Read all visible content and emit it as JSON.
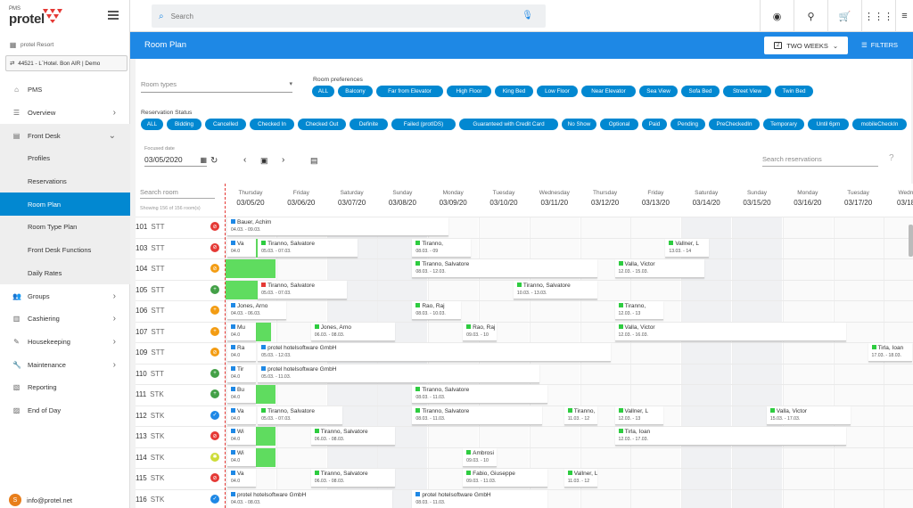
{
  "app": {
    "pms_label": "PMS",
    "brand": "protel",
    "brand_color": "#e53935"
  },
  "sidebar": {
    "property": "protel Resort",
    "hotel_selector": "44521 - L`Hotel. Bon AIR | Demo",
    "items": [
      {
        "label": "PMS",
        "icon": "home-icon"
      },
      {
        "label": "Overview",
        "icon": "overview-icon",
        "chevron": "›"
      },
      {
        "label": "Front Desk",
        "icon": "front-desk-icon",
        "chevron": "⌄"
      },
      {
        "label": "Profiles"
      },
      {
        "label": "Reservations"
      },
      {
        "label": "Room Plan",
        "active": true
      },
      {
        "label": "Room Type Plan"
      },
      {
        "label": "Front Desk Functions"
      },
      {
        "label": "Daily Rates"
      },
      {
        "label": "Groups",
        "icon": "groups-icon",
        "chevron": "›"
      },
      {
        "label": "Cashiering",
        "icon": "cashiering-icon",
        "chevron": "›"
      },
      {
        "label": "Housekeeping",
        "icon": "housekeeping-icon",
        "chevron": "›"
      },
      {
        "label": "Maintenance",
        "icon": "maintenance-icon",
        "chevron": "›"
      },
      {
        "label": "Reporting",
        "icon": "reporting-icon"
      },
      {
        "label": "End of Day",
        "icon": "end-of-day-icon"
      }
    ],
    "user": {
      "initial": "S",
      "email": "info@protel.net"
    }
  },
  "topbar": {
    "search_placeholder": "Search"
  },
  "header": {
    "title": "Room Plan",
    "range_label": "TWO WEEKS",
    "range_badge": "2",
    "filters_label": "FILTERS"
  },
  "filters": {
    "room_types_placeholder": "Room types",
    "room_prefs_label": "Room preferences",
    "room_prefs": [
      "ALL",
      "Balcony",
      "Far from Elevator",
      "High Floor",
      "King Bed",
      "Low Floor",
      "Near Elevator",
      "Sea View",
      "Sofa Bed",
      "Street View",
      "Twin Bed"
    ],
    "res_status_label": "Reservation Status",
    "res_status": [
      "ALL",
      "Bidding",
      "Cancelled",
      "Checked In",
      "Checked Out",
      "Definite",
      "Failed (protIDS)",
      "Guaranteed with Credit Card",
      "No Show",
      "Optional",
      "Paid",
      "Pending",
      "PreCheckedIn",
      "Temporary",
      "Until 6pm",
      "mobileCheckIn"
    ]
  },
  "controls": {
    "focused_label": "Focused date",
    "focused_date": "03/05/2020",
    "search_res_placeholder": "Search reservations"
  },
  "grid": {
    "search_room_placeholder": "Search room",
    "showing": "Showing 156 of 156 room(s)",
    "days": [
      {
        "dow": "Thursday",
        "date": "03/05/20"
      },
      {
        "dow": "Friday",
        "date": "03/06/20"
      },
      {
        "dow": "Saturday",
        "date": "03/07/20"
      },
      {
        "dow": "Sunday",
        "date": "03/08/20"
      },
      {
        "dow": "Monday",
        "date": "03/09/20"
      },
      {
        "dow": "Tuesday",
        "date": "03/10/20"
      },
      {
        "dow": "Wednesday",
        "date": "03/11/20"
      },
      {
        "dow": "Thursday",
        "date": "03/12/20"
      },
      {
        "dow": "Friday",
        "date": "03/13/20"
      },
      {
        "dow": "Saturday",
        "date": "03/14/20"
      },
      {
        "dow": "Sunday",
        "date": "03/15/20"
      },
      {
        "dow": "Monday",
        "date": "03/16/20"
      },
      {
        "dow": "Tuesday",
        "date": "03/17/20"
      },
      {
        "dow": "Wednes",
        "date": "03/18/2"
      }
    ],
    "rooms": [
      {
        "num": "101",
        "type": "STT",
        "status_color": "#e53935",
        "status_glyph": "⊘"
      },
      {
        "num": "103",
        "type": "STT",
        "status_color": "#e53935",
        "status_glyph": "⊘"
      },
      {
        "num": "104",
        "type": "STT",
        "status_color": "#f39c12",
        "status_glyph": "⊘"
      },
      {
        "num": "105",
        "type": "STT",
        "status_color": "#43a047",
        "status_glyph": "+"
      },
      {
        "num": "106",
        "type": "STT",
        "status_color": "#f39c12",
        "status_glyph": "+"
      },
      {
        "num": "107",
        "type": "STT",
        "status_color": "#f39c12",
        "status_glyph": "+"
      },
      {
        "num": "109",
        "type": "STT",
        "status_color": "#f39c12",
        "status_glyph": "⊘"
      },
      {
        "num": "110",
        "type": "STT",
        "status_color": "#43a047",
        "status_glyph": "+"
      },
      {
        "num": "111",
        "type": "STK",
        "status_color": "#43a047",
        "status_glyph": "+"
      },
      {
        "num": "112",
        "type": "STK",
        "status_color": "#1e88e5",
        "status_glyph": "✓"
      },
      {
        "num": "113",
        "type": "STK",
        "status_color": "#e53935",
        "status_glyph": "⊘"
      },
      {
        "num": "114",
        "type": "STK",
        "status_color": "#cddc39",
        "status_glyph": "✱"
      },
      {
        "num": "115",
        "type": "STK",
        "status_color": "#e53935",
        "status_glyph": "⊘"
      },
      {
        "num": "116",
        "type": "STK",
        "status_color": "#1e88e5",
        "status_glyph": "✓"
      }
    ],
    "reservations": [
      {
        "row": 0,
        "start": 0,
        "span": 4.4,
        "name": "Bauer, Achim",
        "dates": "04.03. - 09.03.",
        "sq": "#1e88e5"
      },
      {
        "row": 1,
        "start": 0,
        "span": 0.6,
        "name": "Va",
        "dates": "04.0",
        "sq": "#1e88e5"
      },
      {
        "row": 1,
        "start": 0.6,
        "span": 2.0,
        "name": "Tiranno, Salvatore",
        "dates": "05.03. - 07.03.",
        "sq": "#2ecc40"
      },
      {
        "row": 1,
        "start": 3.65,
        "span": 1.2,
        "name": "Tiranno,",
        "dates": "08.03. - 09",
        "sq": "#2ecc40"
      },
      {
        "row": 1,
        "start": 8.65,
        "span": 0.9,
        "name": "Vallner, L",
        "dates": "13.03. - 14",
        "sq": "#2ecc40"
      },
      {
        "row": 2,
        "start": 3.65,
        "span": 3.7,
        "name": "Tiranno, Salvatore",
        "dates": "08.03. - 12.03.",
        "sq": "#2ecc40"
      },
      {
        "row": 2,
        "start": 7.65,
        "span": 1.8,
        "name": "Valla, Victor",
        "dates": "12.03. - 15.03.",
        "sq": "#2ecc40"
      },
      {
        "row": 3,
        "start": 0.6,
        "span": 1.8,
        "name": "Tiranno, Salvatore",
        "dates": "05.03. - 07.03.",
        "sq": "#e53935"
      },
      {
        "row": 3,
        "start": 5.65,
        "span": 1.7,
        "name": "Tiranno, Salvatore",
        "dates": "10.03. - 13.03.",
        "sq": "#2ecc40"
      },
      {
        "row": 4,
        "start": 0,
        "span": 1.2,
        "name": "Jones, Arno",
        "dates": "04.03. - 06.03.",
        "sq": "#1e88e5"
      },
      {
        "row": 4,
        "start": 3.65,
        "span": 1.0,
        "name": "Rao, Raj",
        "dates": "08.03. - 10.03.",
        "sq": "#2ecc40"
      },
      {
        "row": 4,
        "start": 7.65,
        "span": 1.0,
        "name": "Tiranno,",
        "dates": "12.03. - 13",
        "sq": "#2ecc40"
      },
      {
        "row": 5,
        "start": 0,
        "span": 0.6,
        "name": "Mu",
        "dates": "04.0",
        "sq": "#1e88e5"
      },
      {
        "row": 5,
        "start": 1.65,
        "span": 1.7,
        "name": "Jones, Arno",
        "dates": "06.03. - 08.03.",
        "sq": "#2ecc40"
      },
      {
        "row": 5,
        "start": 4.65,
        "span": 0.7,
        "name": "Rao, Raj",
        "dates": "09.03. - 10",
        "sq": "#2ecc40"
      },
      {
        "row": 5,
        "start": 7.65,
        "span": 4.6,
        "name": "Valla, Victor",
        "dates": "12.03. - 16.03.",
        "sq": "#2ecc40"
      },
      {
        "row": 6,
        "start": 0,
        "span": 0.6,
        "name": "Ra",
        "dates": "04.0",
        "sq": "#1e88e5"
      },
      {
        "row": 6,
        "start": 0.6,
        "span": 7.0,
        "name": "protel hotelsoftware GmbH",
        "dates": "05.03. - 12.03.",
        "sq": "#1e88e5"
      },
      {
        "row": 6,
        "start": 12.65,
        "span": 0.9,
        "name": "Tirla, Ioan",
        "dates": "17.03. - 18.03.",
        "sq": "#2ecc40"
      },
      {
        "row": 7,
        "start": 0,
        "span": 0.6,
        "name": "Tir",
        "dates": "04.0",
        "sq": "#1e88e5"
      },
      {
        "row": 7,
        "start": 0.6,
        "span": 5.6,
        "name": "protel hotelsoftware GmbH",
        "dates": "05.03. - 11.03.",
        "sq": "#1e88e5"
      },
      {
        "row": 8,
        "start": 0,
        "span": 0.6,
        "name": "Bu",
        "dates": "04.0",
        "sq": "#1e88e5"
      },
      {
        "row": 8,
        "start": 3.65,
        "span": 2.7,
        "name": "Tiranno, Salvatore",
        "dates": "08.03. - 11.03.",
        "sq": "#2ecc40"
      },
      {
        "row": 9,
        "start": 0,
        "span": 0.6,
        "name": "Va",
        "dates": "04.0",
        "sq": "#1e88e5"
      },
      {
        "row": 9,
        "start": 0.6,
        "span": 1.7,
        "name": "Tiranno, Salvatore",
        "dates": "05.03. - 07.03.",
        "sq": "#2ecc40"
      },
      {
        "row": 9,
        "start": 3.65,
        "span": 2.6,
        "name": "Tiranno, Salvatore",
        "dates": "08.03. - 11.03.",
        "sq": "#2ecc40"
      },
      {
        "row": 9,
        "start": 6.65,
        "span": 0.7,
        "name": "Tiranno,",
        "dates": "11.03. - 12",
        "sq": "#2ecc40"
      },
      {
        "row": 9,
        "start": 7.65,
        "span": 1.0,
        "name": "Vallner, L",
        "dates": "12.03. - 13",
        "sq": "#2ecc40"
      },
      {
        "row": 9,
        "start": 10.65,
        "span": 1.7,
        "name": "Valla, Victor",
        "dates": "15.03. - 17.03.",
        "sq": "#2ecc40"
      },
      {
        "row": 10,
        "start": 0,
        "span": 0.6,
        "name": "Wi",
        "dates": "04.0",
        "sq": "#1e88e5"
      },
      {
        "row": 10,
        "start": 1.65,
        "span": 1.7,
        "name": "Tiranno, Salvatore",
        "dates": "06.03. - 08.03.",
        "sq": "#2ecc40"
      },
      {
        "row": 10,
        "start": 7.65,
        "span": 4.6,
        "name": "Tirla, Ioan",
        "dates": "12.03. - 17.03.",
        "sq": "#2ecc40"
      },
      {
        "row": 11,
        "start": 0,
        "span": 0.6,
        "name": "Wi",
        "dates": "04.0",
        "sq": "#1e88e5"
      },
      {
        "row": 11,
        "start": 4.65,
        "span": 0.7,
        "name": "Ambrosi",
        "dates": "09.03. - 10",
        "sq": "#2ecc40"
      },
      {
        "row": 12,
        "start": 0,
        "span": 0.6,
        "name": "Va",
        "dates": "04.0",
        "sq": "#1e88e5"
      },
      {
        "row": 12,
        "start": 1.65,
        "span": 1.7,
        "name": "Tiranno, Salvatore",
        "dates": "06.03. - 08.03.",
        "sq": "#2ecc40"
      },
      {
        "row": 12,
        "start": 4.65,
        "span": 1.7,
        "name": "Fabio, Giuseppe",
        "dates": "09.03. - 11.03.",
        "sq": "#2ecc40"
      },
      {
        "row": 12,
        "start": 6.65,
        "span": 0.7,
        "name": "Vallner, L",
        "dates": "11.03. - 12",
        "sq": "#2ecc40"
      },
      {
        "row": 13,
        "start": 0,
        "span": 3.3,
        "name": "protel hotelsoftware GmbH",
        "dates": "04.03. - 08.03.",
        "sq": "#1e88e5"
      },
      {
        "row": 13,
        "start": 3.65,
        "span": 2.7,
        "name": "protel hotelsoftware GmbH",
        "dates": "08.03. - 11.03.",
        "sq": "#1e88e5"
      }
    ],
    "green_blocks": [
      {
        "row": 1,
        "start": 0.3,
        "span": 0.68
      },
      {
        "row": 2,
        "start": 0,
        "span": 0.98
      },
      {
        "row": 3,
        "start": 0,
        "span": 0.7
      },
      {
        "row": 5,
        "start": 0.3,
        "span": 0.6
      },
      {
        "row": 6,
        "start": 0.3,
        "span": 0.3
      },
      {
        "row": 7,
        "start": 0.3,
        "span": 0.3
      },
      {
        "row": 8,
        "start": 0.3,
        "span": 0.68
      },
      {
        "row": 9,
        "start": 0.3,
        "span": 0.3
      },
      {
        "row": 10,
        "start": 0.3,
        "span": 0.68
      },
      {
        "row": 11,
        "start": 0.3,
        "span": 0.68
      },
      {
        "row": 12,
        "start": 0.3,
        "span": 0.3
      }
    ]
  }
}
